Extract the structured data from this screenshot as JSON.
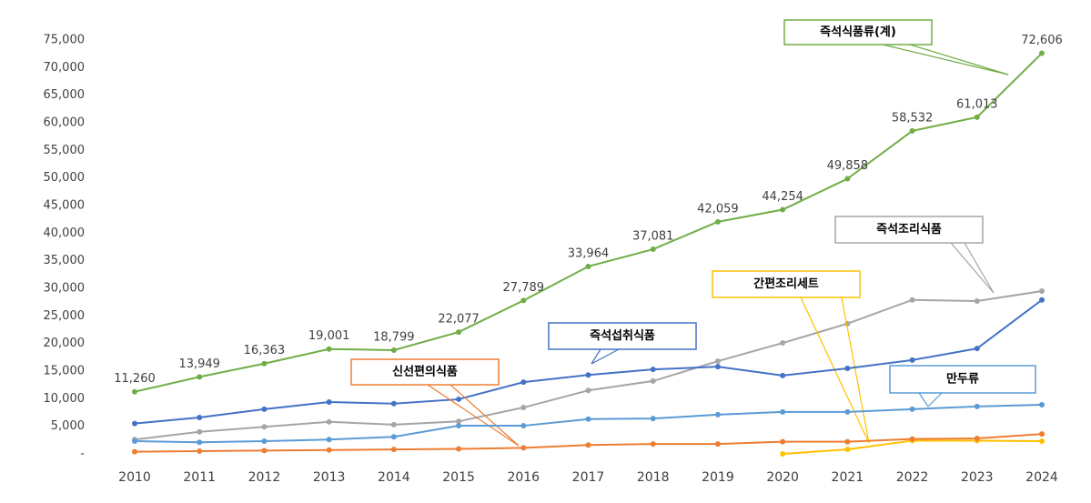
{
  "chart_data": {
    "type": "line",
    "categories": [
      "2010",
      "2011",
      "2012",
      "2013",
      "2014",
      "2015",
      "2016",
      "2017",
      "2018",
      "2019",
      "2020",
      "2021",
      "2022",
      "2023",
      "2024"
    ],
    "ylim": [
      0,
      75000
    ],
    "yticks": [
      {
        "value": 0,
        "label": "-"
      },
      {
        "value": 5000,
        "label": "5,000"
      },
      {
        "value": 10000,
        "label": "10,000"
      },
      {
        "value": 15000,
        "label": "15,000"
      },
      {
        "value": 20000,
        "label": "20,000"
      },
      {
        "value": 25000,
        "label": "25,000"
      },
      {
        "value": 30000,
        "label": "30,000"
      },
      {
        "value": 35000,
        "label": "35,000"
      },
      {
        "value": 40000,
        "label": "40,000"
      },
      {
        "value": 45000,
        "label": "45,000"
      },
      {
        "value": 50000,
        "label": "50,000"
      },
      {
        "value": 55000,
        "label": "55,000"
      },
      {
        "value": 60000,
        "label": "60,000"
      },
      {
        "value": 65000,
        "label": "65,000"
      },
      {
        "value": 70000,
        "label": "70,000"
      },
      {
        "value": 75000,
        "label": "75,000"
      }
    ],
    "grid": false,
    "series": [
      {
        "name": "즉석식품류(계)",
        "color": "#70ad47",
        "values": [
          11260,
          13949,
          16363,
          19001,
          18799,
          22077,
          27789,
          33964,
          37081,
          42059,
          44254,
          49858,
          58532,
          61013,
          72606
        ],
        "value_labels": [
          "11,260",
          "13,949",
          "16,363",
          "19,001",
          "18,799",
          "22,077",
          "27,789",
          "33,964",
          "37,081",
          "42,059",
          "44,254",
          "49,858",
          "58,532",
          "61,013",
          "72,606"
        ]
      },
      {
        "name": "즉석조리식품",
        "color": "#a5a5a5",
        "values": [
          2600,
          4000,
          4900,
          5800,
          5300,
          5900,
          8400,
          11500,
          13200,
          16800,
          20100,
          23600,
          27900,
          27700,
          29500
        ]
      },
      {
        "name": "간편조리세트",
        "color": "#ffc000",
        "values": [
          null,
          null,
          null,
          null,
          null,
          null,
          null,
          null,
          null,
          null,
          0,
          800,
          2400,
          2400,
          2300
        ]
      },
      {
        "name": "즉석섭취식품",
        "color": "#4472c4",
        "values": [
          5500,
          6600,
          8100,
          9400,
          9100,
          9900,
          13000,
          14300,
          15300,
          15800,
          14200,
          15500,
          17000,
          19100,
          27900
        ]
      },
      {
        "name": "신선편의식품",
        "color": "#ed7d31",
        "values": [
          400,
          500,
          600,
          700,
          800,
          900,
          1100,
          1600,
          1800,
          1800,
          2200,
          2200,
          2700,
          2800,
          3600
        ]
      },
      {
        "name": "만두류",
        "color": "#5b9bd5",
        "values": [
          2300,
          2100,
          2300,
          2600,
          3100,
          5100,
          5100,
          6300,
          6400,
          7100,
          7600,
          7600,
          8100,
          8600,
          8900
        ]
      }
    ]
  }
}
